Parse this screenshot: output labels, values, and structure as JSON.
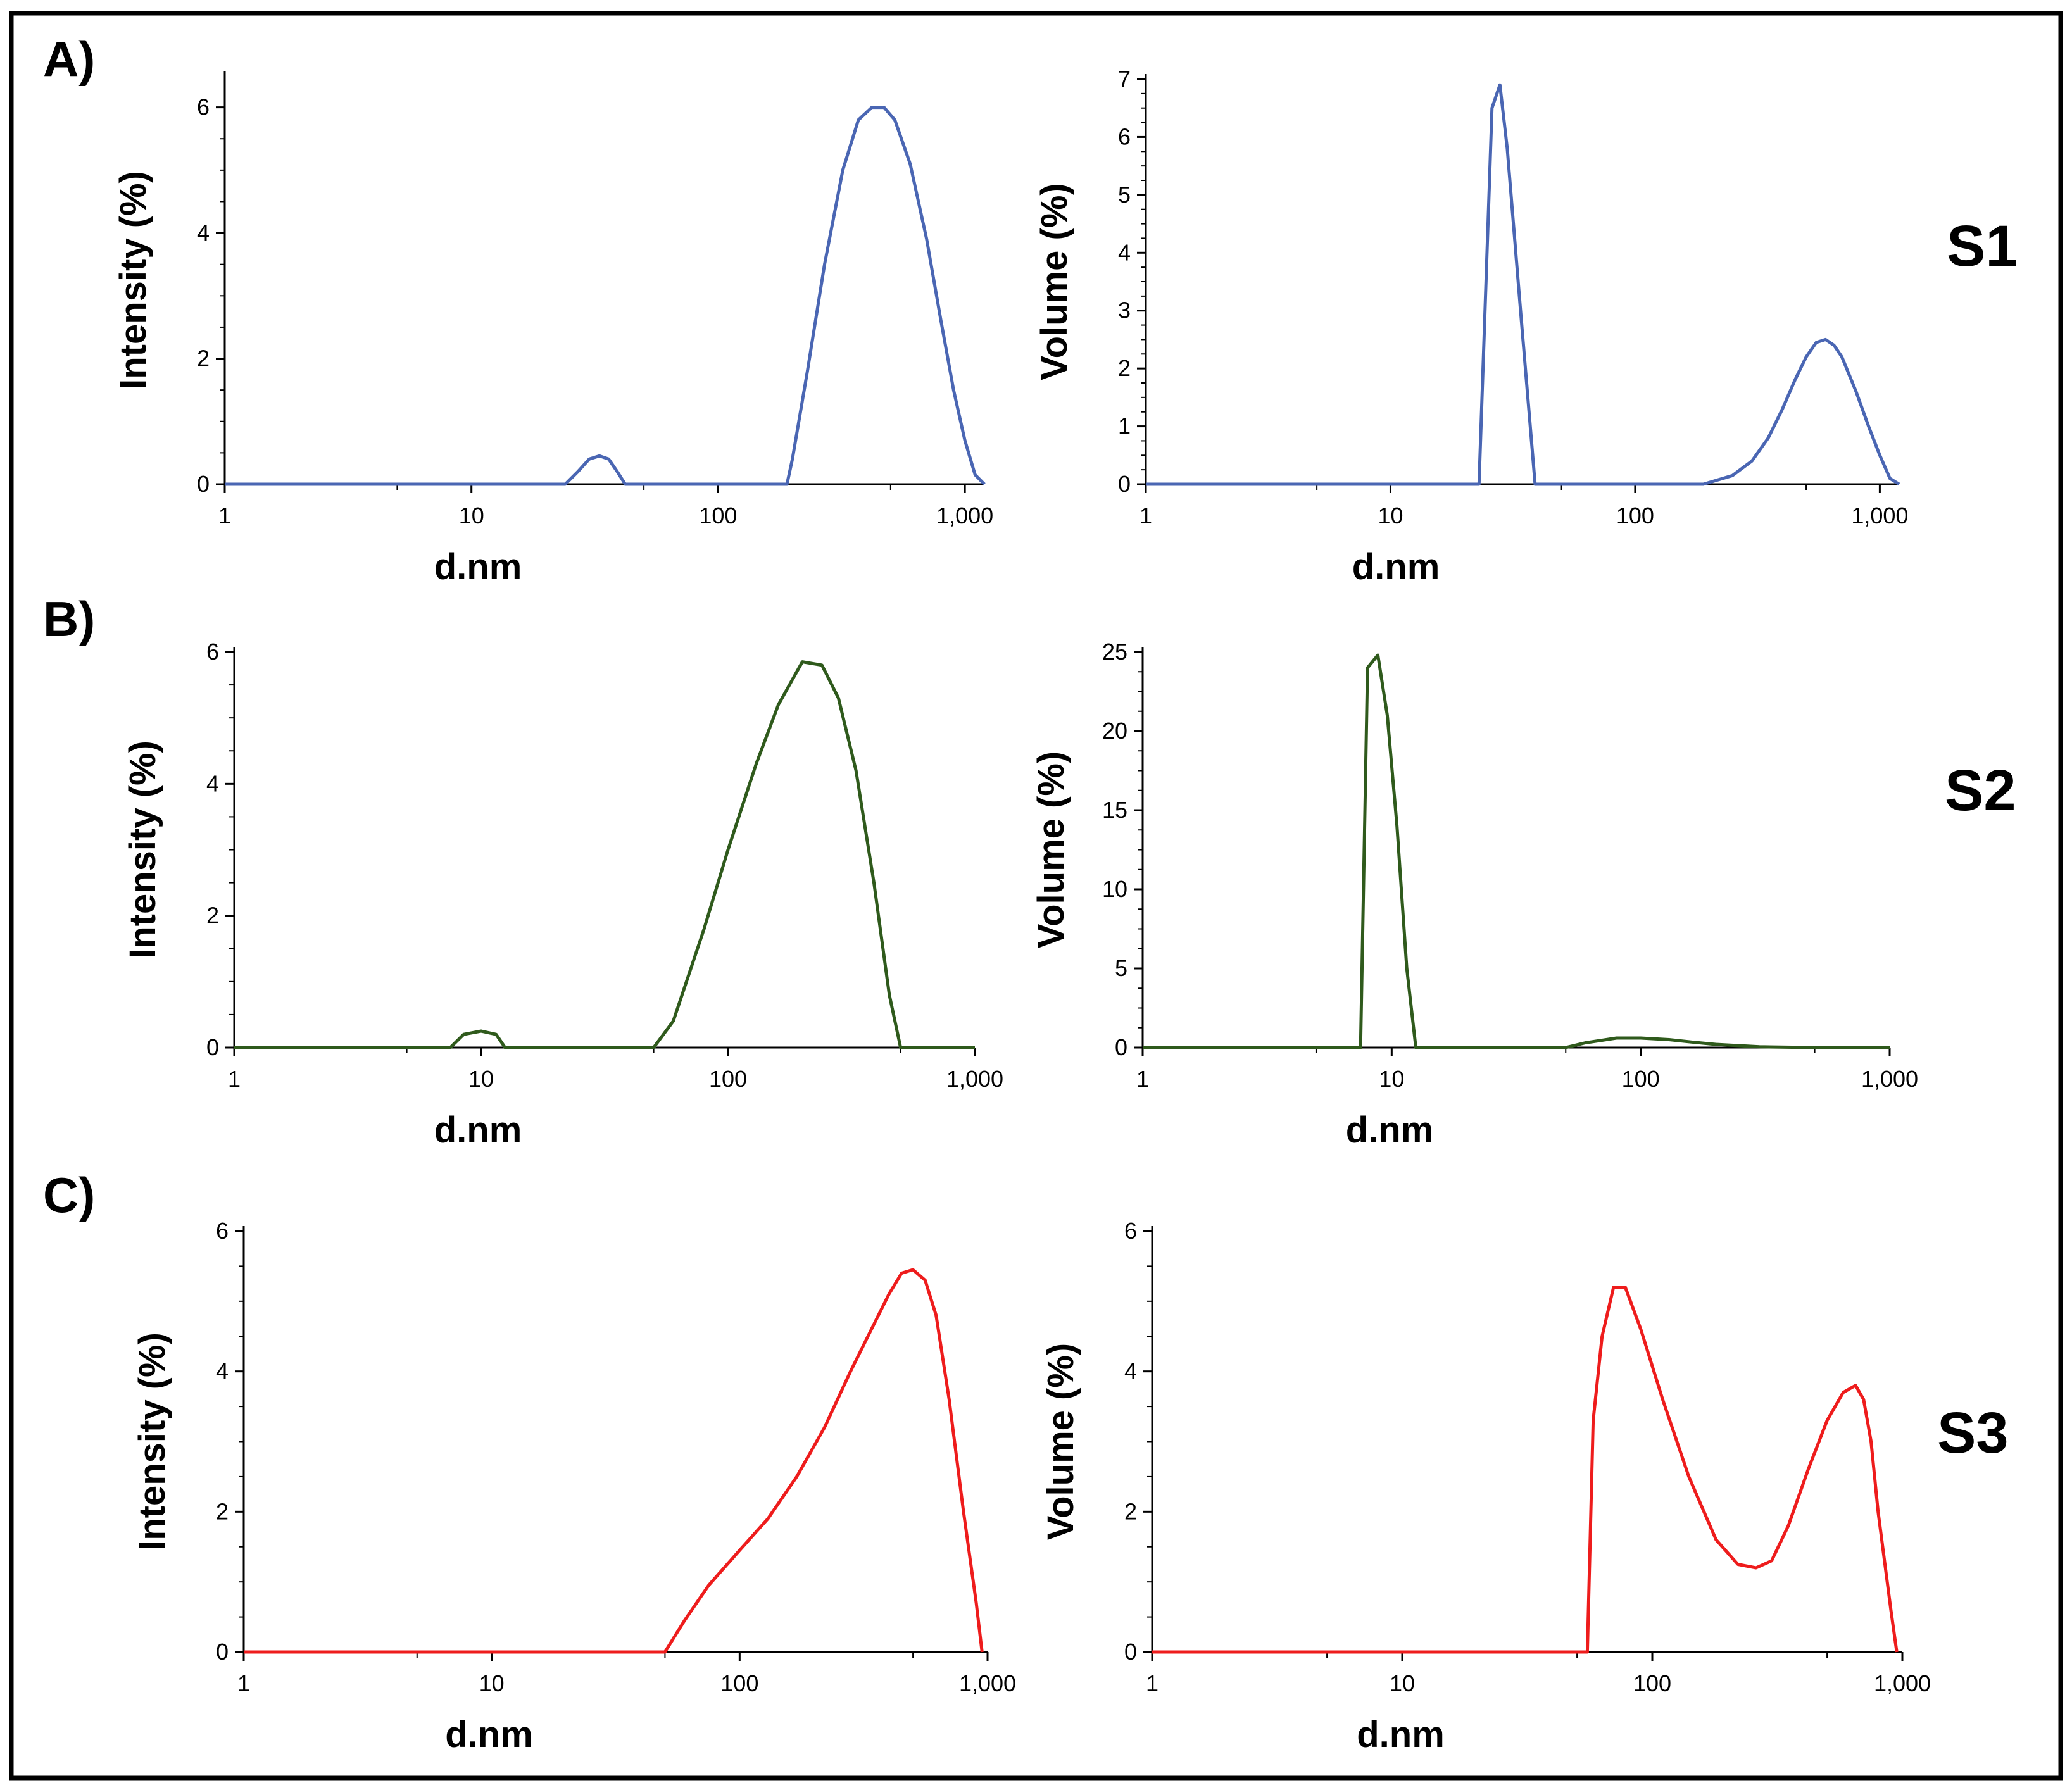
{
  "panel_labels": [
    "A)",
    "B)",
    "C)"
  ],
  "sample_labels": [
    "S1",
    "S2",
    "S3"
  ],
  "chart_data": [
    {
      "type": "line",
      "id": "A-intensity",
      "xscale": "log",
      "xlim": [
        1,
        1200
      ],
      "xticks": [
        1,
        10,
        100,
        1000
      ],
      "xtick_labels": [
        "1",
        "10",
        "100",
        "1,000"
      ],
      "ylim": [
        0,
        6.5
      ],
      "yticks": [
        0,
        2,
        4,
        6
      ],
      "xlabel": "d.nm",
      "ylabel": "Intensity (%)",
      "color": "#4a66b3",
      "series": [
        {
          "x": [
            1,
            24,
            27,
            30,
            33,
            36,
            39,
            42,
            190,
            200,
            230,
            270,
            320,
            370,
            420,
            470,
            520,
            600,
            700,
            800,
            900,
            1000,
            1100,
            1200
          ],
          "y": [
            0,
            0,
            0.2,
            0.4,
            0.45,
            0.4,
            0.2,
            0,
            0,
            0.4,
            1.8,
            3.5,
            5.0,
            5.8,
            6.0,
            6.0,
            5.8,
            5.1,
            3.9,
            2.6,
            1.5,
            0.7,
            0.15,
            0
          ]
        }
      ]
    },
    {
      "type": "line",
      "id": "A-volume",
      "xscale": "log",
      "xlim": [
        1,
        1200
      ],
      "xticks": [
        1,
        10,
        100,
        1000
      ],
      "xtick_labels": [
        "1",
        "10",
        "100",
        "1,000"
      ],
      "ylim": [
        0,
        7
      ],
      "yticks": [
        0,
        1,
        2,
        3,
        4,
        5,
        6,
        7
      ],
      "xlabel": "d.nm",
      "ylabel": "Volume (%)",
      "color": "#4a66b3",
      "series": [
        {
          "x": [
            1,
            23,
            26,
            28,
            30,
            34,
            39,
            190,
            250,
            300,
            350,
            400,
            450,
            500,
            550,
            600,
            650,
            700,
            800,
            900,
            1000,
            1100,
            1200
          ],
          "y": [
            0,
            0,
            6.5,
            6.9,
            5.8,
            3.0,
            0,
            0,
            0.15,
            0.4,
            0.8,
            1.3,
            1.8,
            2.2,
            2.45,
            2.5,
            2.4,
            2.2,
            1.6,
            1.0,
            0.5,
            0.1,
            0
          ]
        }
      ]
    },
    {
      "type": "line",
      "id": "B-intensity",
      "xscale": "log",
      "xlim": [
        1,
        1000
      ],
      "xticks": [
        1,
        10,
        100,
        1000
      ],
      "xtick_labels": [
        "1",
        "10",
        "100",
        "1,000"
      ],
      "ylim": [
        0,
        6
      ],
      "yticks": [
        0,
        2,
        4,
        6
      ],
      "xlabel": "d.nm",
      "ylabel": "Intensity (%)",
      "color": "#2f5a1c",
      "series": [
        {
          "x": [
            1,
            7.5,
            8.5,
            10,
            11.5,
            12.5,
            50,
            60,
            80,
            100,
            130,
            160,
            200,
            240,
            280,
            330,
            390,
            450,
            500,
            1000
          ],
          "y": [
            0,
            0,
            0.2,
            0.25,
            0.2,
            0,
            0,
            0.4,
            1.8,
            3.0,
            4.3,
            5.2,
            5.85,
            5.8,
            5.3,
            4.2,
            2.5,
            0.8,
            0,
            0
          ]
        }
      ]
    },
    {
      "type": "line",
      "id": "B-volume",
      "xscale": "log",
      "xlim": [
        1,
        1000
      ],
      "xticks": [
        1,
        10,
        100,
        1000
      ],
      "xtick_labels": [
        "1",
        "10",
        "100",
        "1,000"
      ],
      "ylim": [
        0,
        25
      ],
      "yticks": [
        0,
        5,
        10,
        15,
        20,
        25
      ],
      "xlabel": "d.nm",
      "ylabel": "Volume (%)",
      "color": "#2f5a1c",
      "series": [
        {
          "x": [
            1,
            7.5,
            8,
            8.8,
            9.6,
            10.5,
            11.5,
            12.5,
            50,
            60,
            80,
            100,
            130,
            160,
            200,
            300,
            500,
            1000
          ],
          "y": [
            0,
            0,
            24,
            24.8,
            21,
            14,
            5,
            0,
            0,
            0.3,
            0.6,
            0.6,
            0.5,
            0.35,
            0.2,
            0.05,
            0,
            0
          ]
        }
      ]
    },
    {
      "type": "line",
      "id": "C-intensity",
      "xscale": "log",
      "xlim": [
        1,
        1000
      ],
      "xticks": [
        1,
        10,
        100,
        1000
      ],
      "xtick_labels": [
        "1",
        "10",
        "100",
        "1,000"
      ],
      "ylim": [
        0,
        6
      ],
      "yticks": [
        0,
        2,
        4,
        6
      ],
      "xlabel": "d.nm",
      "ylabel": "Intensity (%)",
      "color": "#ee1c1c",
      "series": [
        {
          "x": [
            1,
            50,
            60,
            75,
            100,
            130,
            170,
            220,
            280,
            340,
            400,
            450,
            500,
            560,
            620,
            700,
            800,
            900,
            950
          ],
          "y": [
            0,
            0,
            0.45,
            0.95,
            1.45,
            1.9,
            2.5,
            3.2,
            4.0,
            4.6,
            5.1,
            5.4,
            5.45,
            5.3,
            4.8,
            3.6,
            2.0,
            0.7,
            0
          ]
        }
      ]
    },
    {
      "type": "line",
      "id": "C-volume",
      "xscale": "log",
      "xlim": [
        1,
        1000
      ],
      "xticks": [
        1,
        10,
        100,
        1000
      ],
      "xtick_labels": [
        "1",
        "10",
        "100",
        "1,000"
      ],
      "ylim": [
        0,
        6
      ],
      "yticks": [
        0,
        2,
        4,
        6
      ],
      "xlabel": "d.nm",
      "ylabel": "Volume (%)",
      "color": "#ee1c1c",
      "series": [
        {
          "x": [
            1,
            55,
            58,
            63,
            70,
            78,
            90,
            110,
            140,
            180,
            220,
            260,
            300,
            350,
            420,
            500,
            580,
            650,
            700,
            750,
            800,
            900,
            950
          ],
          "y": [
            0,
            0,
            3.3,
            4.5,
            5.2,
            5.2,
            4.6,
            3.6,
            2.5,
            1.6,
            1.25,
            1.2,
            1.3,
            1.8,
            2.6,
            3.3,
            3.7,
            3.8,
            3.6,
            3.0,
            2.0,
            0.6,
            0
          ]
        }
      ]
    }
  ]
}
